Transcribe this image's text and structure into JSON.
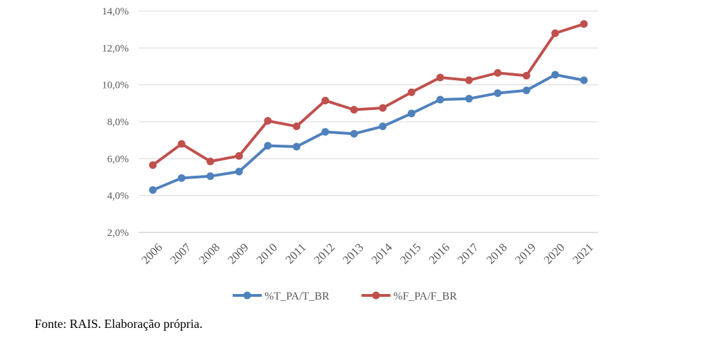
{
  "chart_data": {
    "type": "line",
    "x": [
      "2006",
      "2007",
      "2008",
      "2009",
      "2010",
      "2011",
      "2012",
      "2013",
      "2014",
      "2015",
      "2016",
      "2017",
      "2018",
      "2019",
      "2020",
      "2021"
    ],
    "series": [
      {
        "name": "%T_PA/T_BR",
        "color": "#4F81BD",
        "values": [
          4.3,
          4.95,
          5.05,
          5.3,
          6.7,
          6.65,
          7.45,
          7.35,
          7.75,
          8.45,
          9.2,
          9.25,
          9.55,
          9.7,
          10.55,
          10.25
        ]
      },
      {
        "name": "%F_PA/F_BR",
        "color": "#C0504D",
        "values": [
          5.65,
          6.8,
          5.85,
          6.15,
          8.05,
          7.75,
          9.15,
          8.65,
          8.75,
          9.6,
          10.4,
          10.25,
          10.65,
          10.5,
          12.8,
          13.3
        ]
      }
    ],
    "yticks": [
      "2,0%",
      "4,0%",
      "6,0%",
      "8,0%",
      "10,0%",
      "12,0%",
      "14,0%"
    ],
    "ytick_values": [
      2,
      4,
      6,
      8,
      10,
      12,
      14
    ],
    "ylim": [
      2,
      14
    ],
    "grid": true,
    "legend": "bottom",
    "title": "",
    "xlabel": "",
    "ylabel": ""
  },
  "source_note": "Fonte: RAIS. Elaboração própria."
}
